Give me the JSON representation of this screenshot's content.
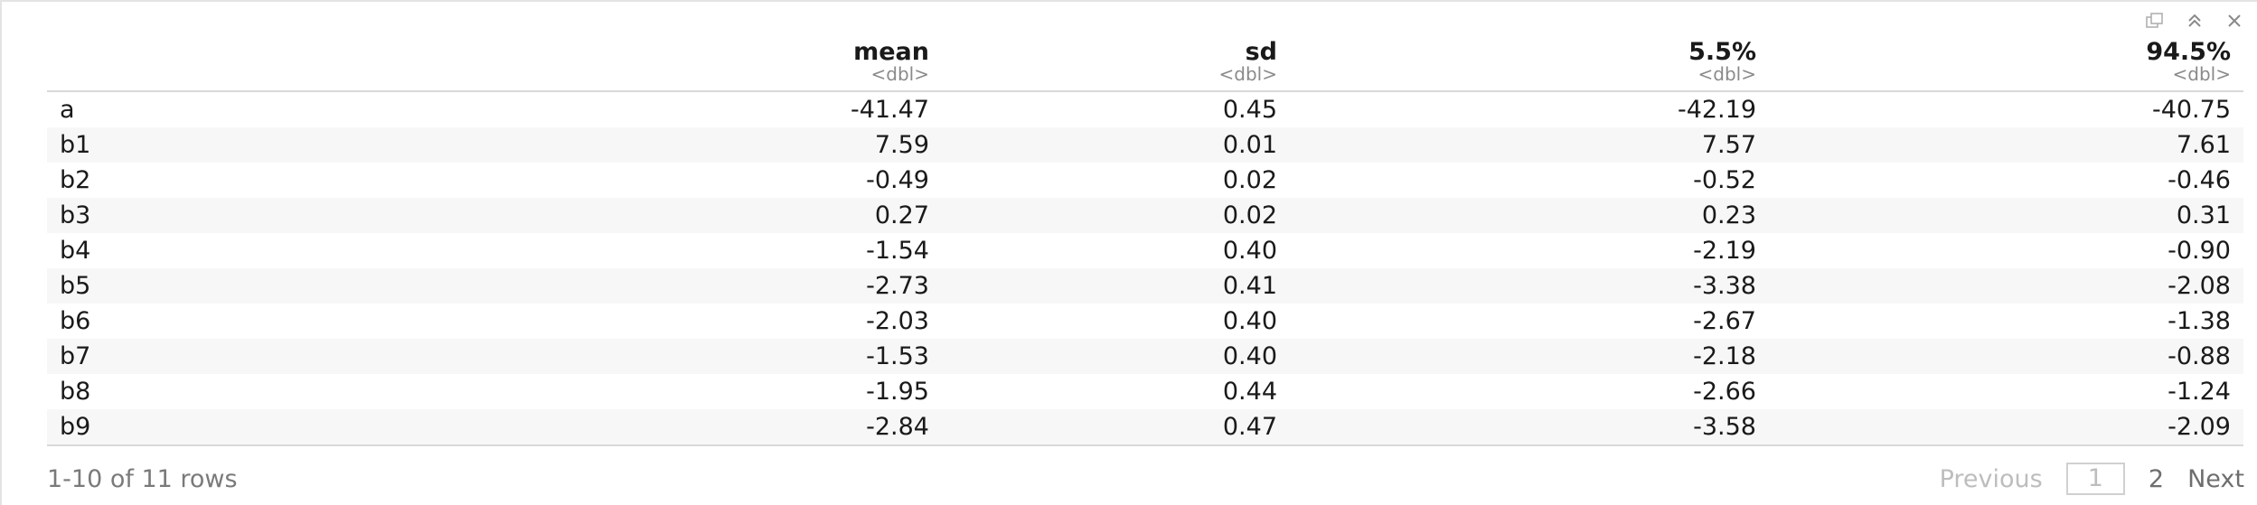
{
  "toolbar": {
    "icons": [
      "popout-icon",
      "collapse-icon",
      "close-icon"
    ]
  },
  "table": {
    "columns": [
      {
        "name": "",
        "type": ""
      },
      {
        "name": "mean",
        "type": "<dbl>"
      },
      {
        "name": "sd",
        "type": "<dbl>"
      },
      {
        "name": "5.5%",
        "type": "<dbl>"
      },
      {
        "name": "94.5%",
        "type": "<dbl>"
      }
    ],
    "rows": [
      [
        "a",
        "-41.47",
        "0.45",
        "-42.19",
        "-40.75"
      ],
      [
        "b1",
        "7.59",
        "0.01",
        "7.57",
        "7.61"
      ],
      [
        "b2",
        "-0.49",
        "0.02",
        "-0.52",
        "-0.46"
      ],
      [
        "b3",
        "0.27",
        "0.02",
        "0.23",
        "0.31"
      ],
      [
        "b4",
        "-1.54",
        "0.40",
        "-2.19",
        "-0.90"
      ],
      [
        "b5",
        "-2.73",
        "0.41",
        "-3.38",
        "-2.08"
      ],
      [
        "b6",
        "-2.03",
        "0.40",
        "-2.67",
        "-1.38"
      ],
      [
        "b7",
        "-1.53",
        "0.40",
        "-2.18",
        "-0.88"
      ],
      [
        "b8",
        "-1.95",
        "0.44",
        "-2.66",
        "-1.24"
      ],
      [
        "b9",
        "-2.84",
        "0.47",
        "-3.58",
        "-2.09"
      ]
    ]
  },
  "footer": {
    "row_info": "1-10 of 11 rows",
    "previous_label": "Previous",
    "current_page": "1",
    "page_2": "2",
    "next_label": "Next"
  }
}
